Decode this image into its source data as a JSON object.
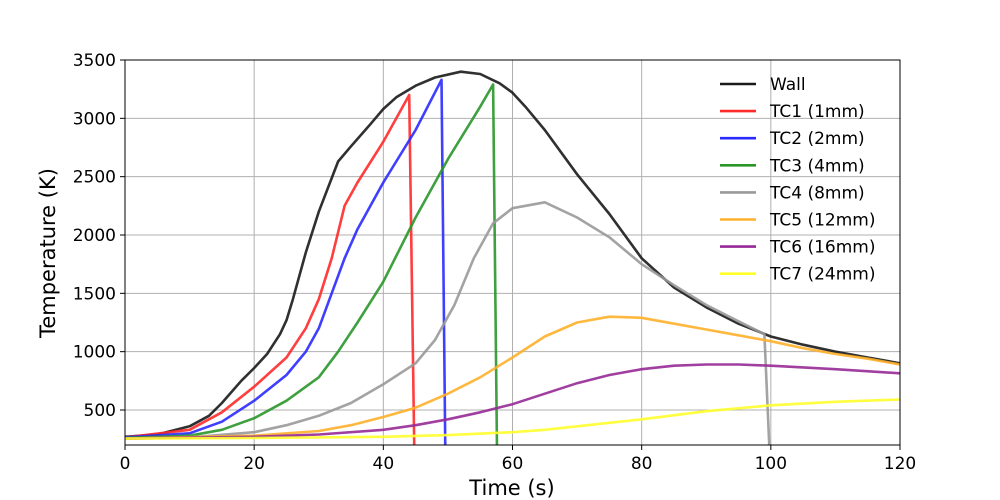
{
  "chart_data": {
    "type": "line",
    "title": "",
    "xlabel": "Time (s)",
    "ylabel": "Temperature (K)",
    "xlim": [
      0,
      120
    ],
    "ylim": [
      200,
      3500
    ],
    "xticks": [
      0,
      20,
      40,
      60,
      80,
      100,
      120
    ],
    "yticks": [
      500,
      1000,
      1500,
      2000,
      2500,
      3000,
      3500
    ],
    "grid": true,
    "legend": "top-right",
    "series": [
      {
        "name": "Wall",
        "color": "#1a1a1a",
        "points": [
          [
            0,
            270
          ],
          [
            5,
            290
          ],
          [
            10,
            360
          ],
          [
            13,
            450
          ],
          [
            15,
            560
          ],
          [
            18,
            750
          ],
          [
            20,
            860
          ],
          [
            22,
            980
          ],
          [
            24,
            1150
          ],
          [
            25,
            1270
          ],
          [
            26,
            1450
          ],
          [
            28,
            1850
          ],
          [
            30,
            2200
          ],
          [
            33,
            2630
          ],
          [
            35,
            2760
          ],
          [
            38,
            2950
          ],
          [
            40,
            3080
          ],
          [
            42,
            3180
          ],
          [
            45,
            3280
          ],
          [
            48,
            3350
          ],
          [
            52,
            3400
          ],
          [
            55,
            3380
          ],
          [
            58,
            3300
          ],
          [
            60,
            3220
          ],
          [
            62,
            3100
          ],
          [
            65,
            2900
          ],
          [
            70,
            2520
          ],
          [
            75,
            2180
          ],
          [
            80,
            1800
          ],
          [
            85,
            1550
          ],
          [
            90,
            1380
          ],
          [
            95,
            1240
          ],
          [
            100,
            1130
          ],
          [
            105,
            1060
          ],
          [
            110,
            1000
          ],
          [
            115,
            950
          ],
          [
            120,
            900
          ]
        ]
      },
      {
        "name": "TC1 (1mm)",
        "color": "#ff2a2a",
        "points": [
          [
            0,
            265
          ],
          [
            10,
            330
          ],
          [
            15,
            480
          ],
          [
            20,
            700
          ],
          [
            25,
            950
          ],
          [
            28,
            1200
          ],
          [
            30,
            1450
          ],
          [
            32,
            1800
          ],
          [
            34,
            2250
          ],
          [
            36,
            2450
          ],
          [
            40,
            2800
          ],
          [
            44,
            3200
          ],
          [
            44.8,
            150
          ]
        ]
      },
      {
        "name": "TC2 (2mm)",
        "color": "#2a2aff",
        "points": [
          [
            0,
            265
          ],
          [
            10,
            300
          ],
          [
            15,
            400
          ],
          [
            20,
            580
          ],
          [
            25,
            800
          ],
          [
            28,
            1000
          ],
          [
            30,
            1200
          ],
          [
            32,
            1500
          ],
          [
            34,
            1800
          ],
          [
            36,
            2050
          ],
          [
            40,
            2450
          ],
          [
            45,
            2900
          ],
          [
            49,
            3330
          ],
          [
            49.6,
            150
          ]
        ]
      },
      {
        "name": "TC3 (4mm)",
        "color": "#2a962a",
        "points": [
          [
            0,
            260
          ],
          [
            10,
            280
          ],
          [
            15,
            330
          ],
          [
            20,
            430
          ],
          [
            25,
            580
          ],
          [
            30,
            780
          ],
          [
            33,
            1000
          ],
          [
            36,
            1250
          ],
          [
            40,
            1600
          ],
          [
            45,
            2150
          ],
          [
            50,
            2650
          ],
          [
            55,
            3100
          ],
          [
            57,
            3290
          ],
          [
            57.6,
            150
          ]
        ]
      },
      {
        "name": "TC4 (8mm)",
        "color": "#999999",
        "points": [
          [
            0,
            255
          ],
          [
            10,
            265
          ],
          [
            20,
            310
          ],
          [
            25,
            370
          ],
          [
            30,
            450
          ],
          [
            35,
            560
          ],
          [
            40,
            720
          ],
          [
            45,
            900
          ],
          [
            48,
            1100
          ],
          [
            51,
            1400
          ],
          [
            54,
            1800
          ],
          [
            57,
            2100
          ],
          [
            60,
            2230
          ],
          [
            65,
            2280
          ],
          [
            70,
            2150
          ],
          [
            75,
            1980
          ],
          [
            80,
            1750
          ],
          [
            85,
            1570
          ],
          [
            90,
            1400
          ],
          [
            95,
            1260
          ],
          [
            99,
            1150
          ],
          [
            99.8,
            150
          ]
        ]
      },
      {
        "name": "TC5 (12mm)",
        "color": "#ffb02a",
        "points": [
          [
            0,
            255
          ],
          [
            20,
            280
          ],
          [
            30,
            320
          ],
          [
            35,
            370
          ],
          [
            40,
            440
          ],
          [
            45,
            520
          ],
          [
            50,
            640
          ],
          [
            55,
            780
          ],
          [
            60,
            950
          ],
          [
            65,
            1130
          ],
          [
            70,
            1250
          ],
          [
            75,
            1300
          ],
          [
            80,
            1290
          ],
          [
            85,
            1240
          ],
          [
            90,
            1190
          ],
          [
            95,
            1140
          ],
          [
            100,
            1090
          ],
          [
            105,
            1030
          ],
          [
            110,
            980
          ],
          [
            115,
            940
          ],
          [
            120,
            890
          ]
        ]
      },
      {
        "name": "TC6 (16mm)",
        "color": "#962a96",
        "points": [
          [
            0,
            255
          ],
          [
            20,
            270
          ],
          [
            30,
            290
          ],
          [
            40,
            330
          ],
          [
            45,
            370
          ],
          [
            50,
            420
          ],
          [
            55,
            480
          ],
          [
            60,
            550
          ],
          [
            65,
            640
          ],
          [
            70,
            730
          ],
          [
            75,
            800
          ],
          [
            80,
            850
          ],
          [
            85,
            880
          ],
          [
            90,
            890
          ],
          [
            95,
            890
          ],
          [
            100,
            880
          ],
          [
            110,
            850
          ],
          [
            120,
            815
          ]
        ]
      },
      {
        "name": "TC7 (24mm)",
        "color": "#ffff2a",
        "points": [
          [
            0,
            255
          ],
          [
            20,
            260
          ],
          [
            40,
            270
          ],
          [
            50,
            285
          ],
          [
            60,
            310
          ],
          [
            65,
            330
          ],
          [
            70,
            360
          ],
          [
            80,
            420
          ],
          [
            90,
            490
          ],
          [
            100,
            540
          ],
          [
            110,
            570
          ],
          [
            120,
            590
          ]
        ]
      }
    ]
  }
}
